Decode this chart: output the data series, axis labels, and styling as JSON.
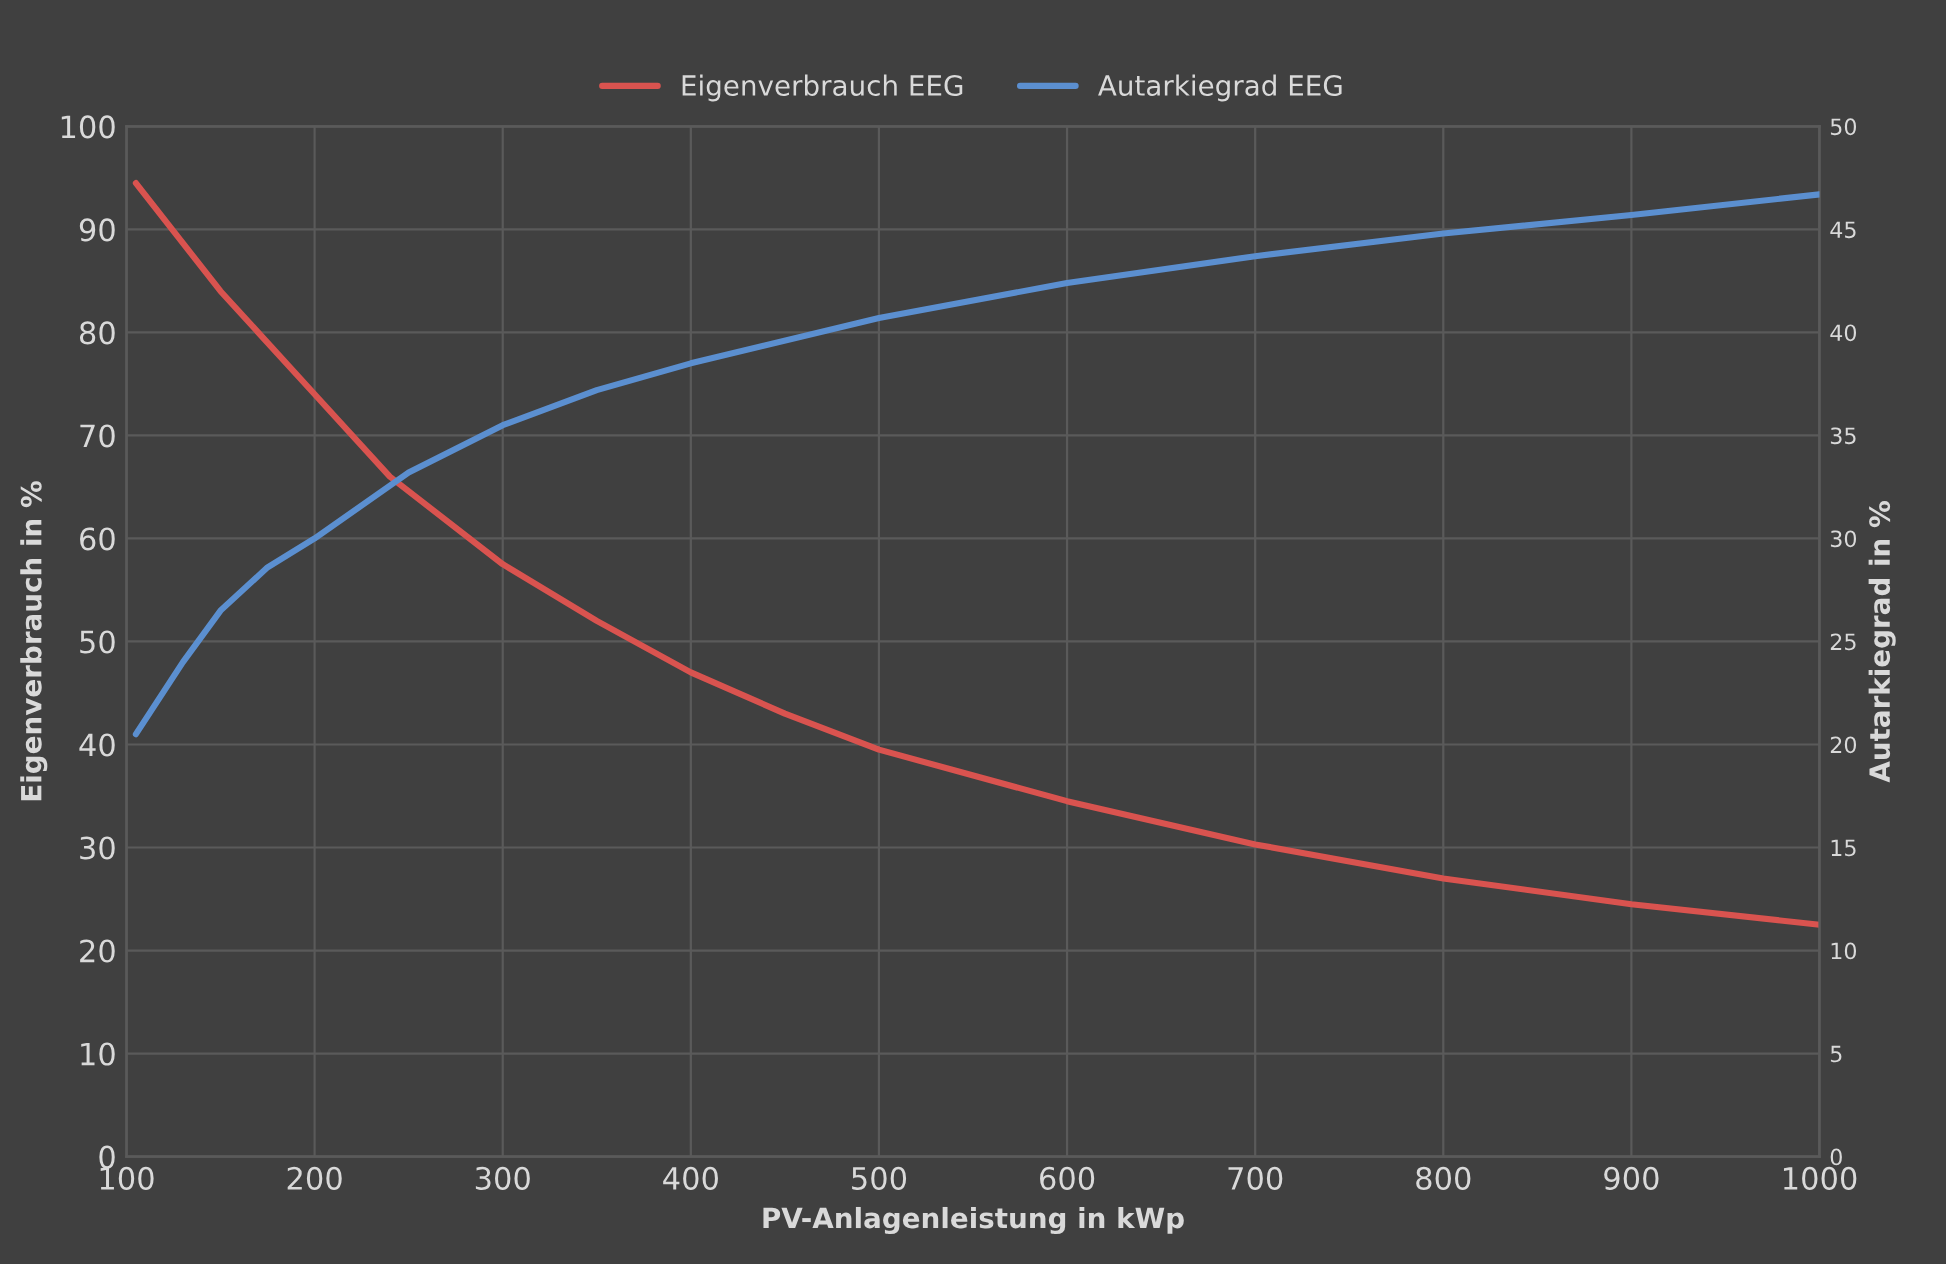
{
  "chart_data": {
    "type": "line",
    "xlabel": "PV-Anlagenleistung in kWp",
    "ylabel": "Eigenverbrauch in %",
    "y2label": "Autarkiegrad in %",
    "xlim": [
      100,
      1000
    ],
    "xticks": [
      100,
      200,
      300,
      400,
      500,
      600,
      700,
      800,
      900,
      1000
    ],
    "ylim": [
      0,
      100
    ],
    "yticks": [
      0,
      10,
      20,
      30,
      40,
      50,
      60,
      70,
      80,
      90,
      100
    ],
    "y2lim": [
      0,
      50
    ],
    "y2ticks": [
      0,
      5,
      10,
      15,
      20,
      25,
      30,
      35,
      40,
      45,
      50
    ],
    "grid": true,
    "legend": "top",
    "marker": "none",
    "line_style": "solid",
    "series": [
      {
        "name": "Eigenverbrauch EEG",
        "color": "#d9534f",
        "x": [
          105,
          150,
          200,
          240,
          300,
          350,
          400,
          450,
          500,
          600,
          700,
          800,
          900,
          1000
        ],
        "values": [
          94.5,
          84,
          74,
          66,
          57.5,
          52,
          47,
          43,
          39.5,
          34.5,
          30.3,
          27,
          24.5,
          22.5
        ]
      },
      {
        "name": "Autarkiegrad EEG",
        "color": "#5b8fd0",
        "axis": "y2",
        "x": [
          105,
          130,
          150,
          175,
          200,
          250,
          300,
          350,
          400,
          500,
          600,
          700,
          800,
          900,
          1000
        ],
        "values": [
          20.5,
          24,
          26.5,
          28.6,
          30,
          33.2,
          35.5,
          37.2,
          38.5,
          40.7,
          42.4,
          43.7,
          44.8,
          45.7,
          46.7
        ]
      }
    ]
  }
}
